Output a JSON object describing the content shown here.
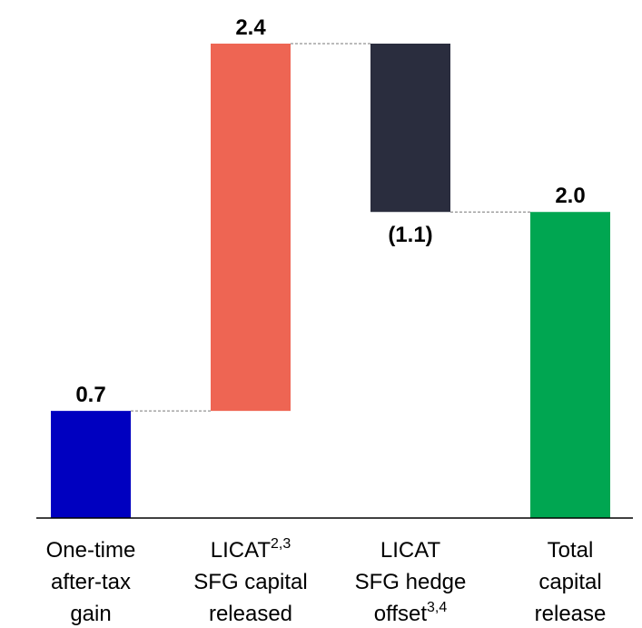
{
  "chart_data": {
    "type": "waterfall",
    "categories": [
      [
        "One-time",
        "after-tax",
        "gain"
      ],
      [
        {
          "text": "LICAT",
          "sup": "2,3"
        },
        "SFG capital",
        "released"
      ],
      [
        "LICAT",
        "SFG hedge",
        {
          "text": "offset",
          "sup": "3,4"
        }
      ],
      [
        "Total",
        "capital",
        "release"
      ]
    ],
    "values": [
      0.7,
      2.4,
      -1.1,
      2.0
    ],
    "value_labels": [
      "0.7",
      "2.4",
      "(1.1)",
      "2.0"
    ],
    "totals": [
      false,
      false,
      false,
      true
    ],
    "colors": [
      "#0000c0",
      "#ee6553",
      "#2a2d3e",
      "#00a651"
    ]
  }
}
